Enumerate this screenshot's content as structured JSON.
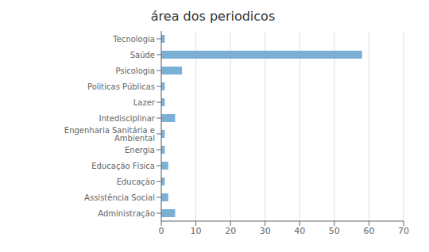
{
  "chart_data": {
    "type": "bar",
    "orientation": "horizontal",
    "title": "área dos periodicos",
    "categories": [
      "Tecnologia",
      "Saúde",
      "Psicologia",
      "Politicas Públicas",
      "Lazer",
      "Intedisciplinar",
      "Engenharia Sanitária e Ambiental",
      "Energia",
      "Educação Física",
      "Educação",
      "Assistência Social",
      "Administração"
    ],
    "values": [
      1,
      58,
      6,
      1,
      1,
      4,
      1,
      1,
      2,
      1,
      2,
      4
    ],
    "color": "#7bafd4",
    "xlim": [
      0,
      70
    ],
    "xticks": [
      0,
      10,
      20,
      30,
      40,
      50,
      60,
      70
    ],
    "grid": true
  }
}
